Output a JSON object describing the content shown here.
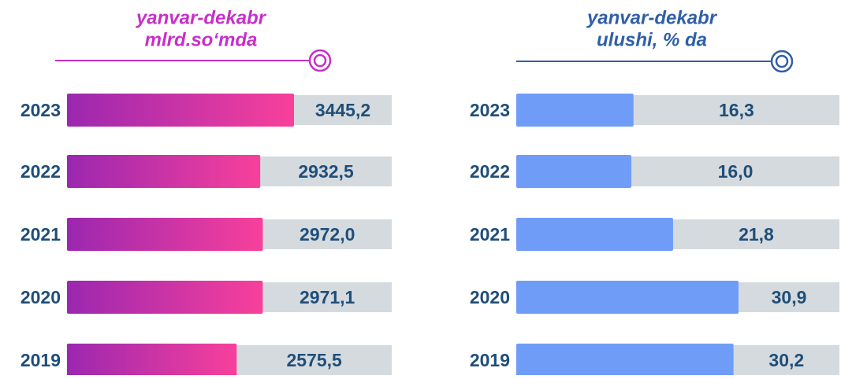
{
  "chart_data": [
    {
      "type": "bar",
      "title": "yanvar-dekabr",
      "subtitle": "mlrd.so‘mda",
      "categories": [
        "2023",
        "2022",
        "2021",
        "2020",
        "2019"
      ],
      "values": [
        3445.2,
        2932.5,
        2972.0,
        2971.1,
        2575.5
      ],
      "value_labels": [
        "3445,2",
        "2932,5",
        "2972,0",
        "2971,1",
        "2575,5"
      ],
      "color": [
        "#9b27b0",
        "#f8409b"
      ],
      "title_color": "#c72fc9"
    },
    {
      "type": "bar",
      "title": "yanvar-dekabr",
      "subtitle": "ulushi, % da",
      "categories": [
        "2023",
        "2022",
        "2021",
        "2020",
        "2019"
      ],
      "values": [
        16.3,
        16.0,
        21.8,
        30.9,
        30.2
      ],
      "value_labels": [
        "16,3",
        "16,0",
        "21,8",
        "30,9",
        "30,2"
      ],
      "color": "#6f9cf7",
      "title_color": "#2f5fa7"
    }
  ]
}
